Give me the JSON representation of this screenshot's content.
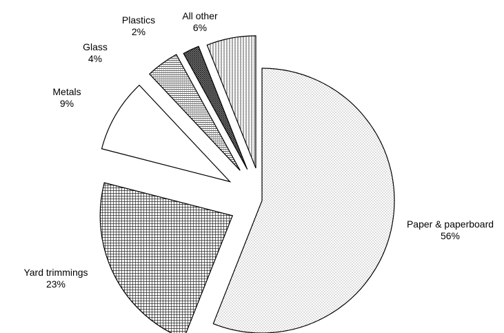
{
  "chart_data": {
    "type": "pie",
    "title": "",
    "slices": [
      {
        "label": "Paper & paperboard",
        "value_label": "56%",
        "value": 56,
        "pattern": "dots"
      },
      {
        "label": "Yard trimmings",
        "value_label": "23%",
        "value": 23,
        "pattern": "grid"
      },
      {
        "label": "Metals",
        "value_label": "9%",
        "value": 9,
        "pattern": "none"
      },
      {
        "label": "Glass",
        "value_label": "4%",
        "value": 4,
        "pattern": "fine-grid"
      },
      {
        "label": "Plastics",
        "value_label": "2%",
        "value": 2,
        "pattern": "dense-crosshatch"
      },
      {
        "label": "All other",
        "value_label": "6%",
        "value": 6,
        "pattern": "vertical-lines"
      }
    ],
    "exploded": true,
    "legend": "none"
  }
}
